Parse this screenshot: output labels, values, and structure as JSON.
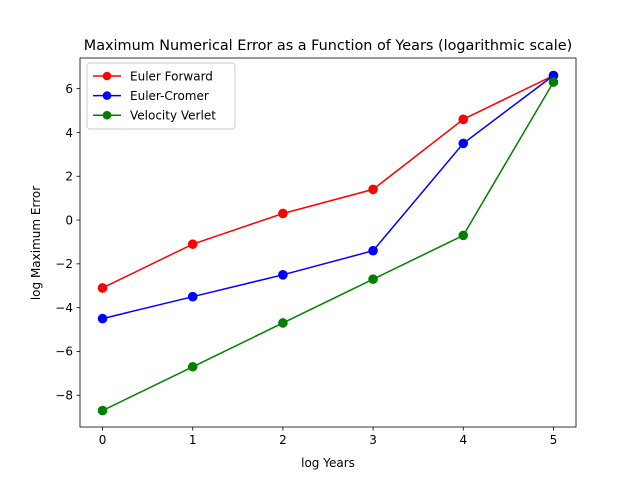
{
  "chart_data": {
    "type": "line",
    "title": "Maximum Numerical Error as a Function of Years (logarithmic scale)",
    "xlabel": "log Years",
    "ylabel": "log Maximum Error",
    "x": [
      0,
      1,
      2,
      3,
      4,
      5
    ],
    "xlim": [
      -0.25,
      5.25
    ],
    "ylim": [
      -9.45,
      7.4
    ],
    "xticks": [
      0,
      1,
      2,
      3,
      4,
      5
    ],
    "xtick_labels": [
      "0",
      "1",
      "2",
      "3",
      "4",
      "5"
    ],
    "yticks": [
      -8,
      -6,
      -4,
      -2,
      0,
      2,
      4,
      6
    ],
    "ytick_labels": [
      "−8",
      "−6",
      "−4",
      "−2",
      "0",
      "2",
      "4",
      "6"
    ],
    "grid": false,
    "legend_position": "top-left",
    "series": [
      {
        "name": "Euler Forward",
        "color": "#ff0000",
        "marker": "circle",
        "values": [
          -3.1,
          -1.1,
          0.3,
          1.4,
          4.6,
          6.6
        ]
      },
      {
        "name": "Euler-Cromer",
        "color": "#0000ff",
        "marker": "circle",
        "values": [
          -4.5,
          -3.5,
          -2.5,
          -1.4,
          3.5,
          6.6
        ]
      },
      {
        "name": "Velocity Verlet",
        "color": "#008000",
        "marker": "circle",
        "values": [
          -8.7,
          -6.7,
          -4.7,
          -2.7,
          -0.7,
          6.3
        ]
      }
    ]
  }
}
